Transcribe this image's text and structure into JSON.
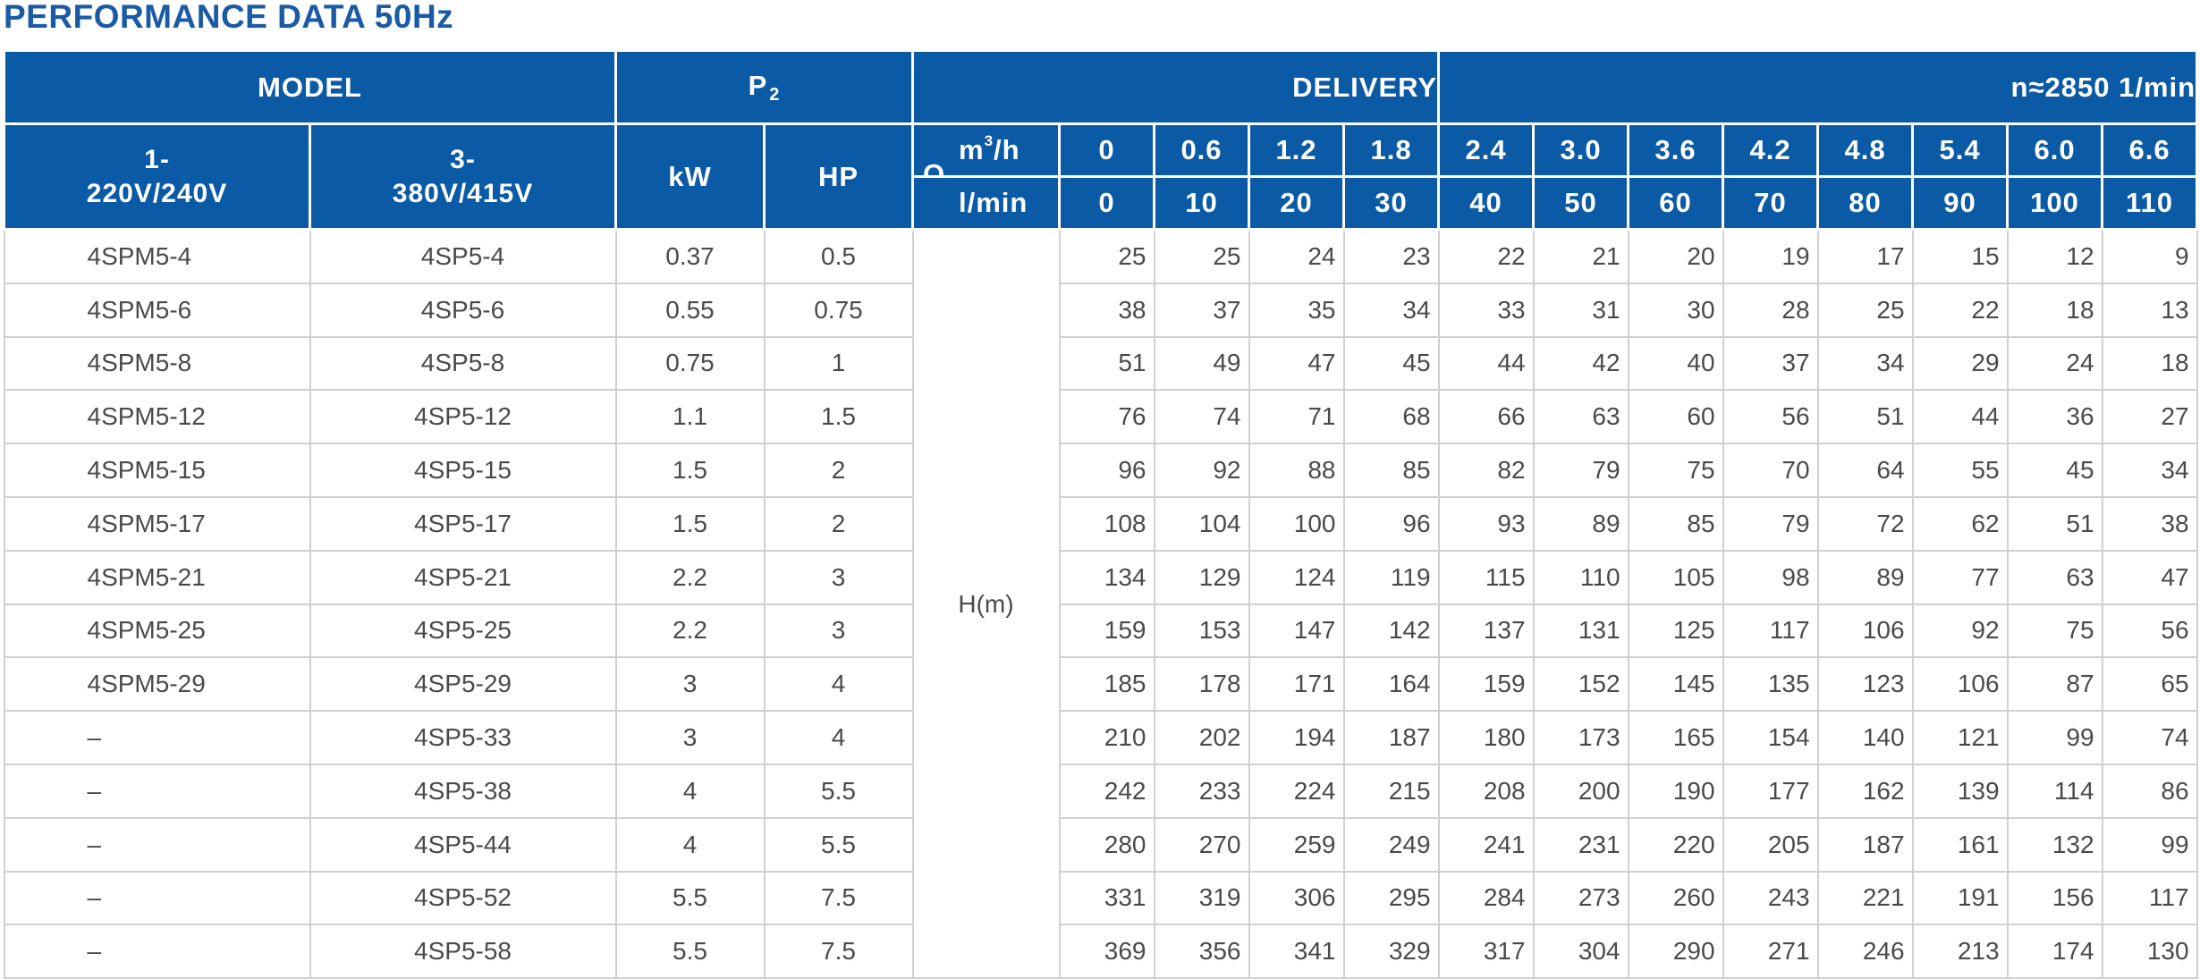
{
  "title": "PERFORMANCE DATA 50Hz",
  "header": {
    "model": "MODEL",
    "p2_main": "P",
    "p2_sub": "2",
    "delivery": "DELIVERY",
    "speed": "n≈2850  1/min",
    "single_phase": "1-\n220V/240V",
    "single_phase_line1": "1-",
    "single_phase_line2": "220V/240V",
    "three_phase_line1": "3-",
    "three_phase_line2": "380V/415V",
    "kw": "kW",
    "hp": "HP",
    "q": "Q",
    "unit_m3h_base": "m",
    "unit_m3h_sup": "3",
    "unit_m3h_tail": "/h",
    "unit_lmin": "l/min",
    "head_label": "H(m)"
  },
  "flow_m3h": [
    "0",
    "0.6",
    "1.2",
    "1.8",
    "2.4",
    "3.0",
    "3.6",
    "4.2",
    "4.8",
    "5.4",
    "6.0",
    "6.6"
  ],
  "flow_lmin": [
    "0",
    "10",
    "20",
    "30",
    "40",
    "50",
    "60",
    "70",
    "80",
    "90",
    "100",
    "110"
  ],
  "rows": [
    {
      "single": "4SPM5-4",
      "three": "4SP5-4",
      "kw": "0.37",
      "hp": "0.5",
      "head": [
        "25",
        "25",
        "24",
        "23",
        "22",
        "21",
        "20",
        "19",
        "17",
        "15",
        "12",
        "9"
      ]
    },
    {
      "single": "4SPM5-6",
      "three": "4SP5-6",
      "kw": "0.55",
      "hp": "0.75",
      "head": [
        "38",
        "37",
        "35",
        "34",
        "33",
        "31",
        "30",
        "28",
        "25",
        "22",
        "18",
        "13"
      ]
    },
    {
      "single": "4SPM5-8",
      "three": "4SP5-8",
      "kw": "0.75",
      "hp": "1",
      "head": [
        "51",
        "49",
        "47",
        "45",
        "44",
        "42",
        "40",
        "37",
        "34",
        "29",
        "24",
        "18"
      ]
    },
    {
      "single": "4SPM5-12",
      "three": "4SP5-12",
      "kw": "1.1",
      "hp": "1.5",
      "head": [
        "76",
        "74",
        "71",
        "68",
        "66",
        "63",
        "60",
        "56",
        "51",
        "44",
        "36",
        "27"
      ]
    },
    {
      "single": "4SPM5-15",
      "three": "4SP5-15",
      "kw": "1.5",
      "hp": "2",
      "head": [
        "96",
        "92",
        "88",
        "85",
        "82",
        "79",
        "75",
        "70",
        "64",
        "55",
        "45",
        "34"
      ]
    },
    {
      "single": "4SPM5-17",
      "three": "4SP5-17",
      "kw": "1.5",
      "hp": "2",
      "head": [
        "108",
        "104",
        "100",
        "96",
        "93",
        "89",
        "85",
        "79",
        "72",
        "62",
        "51",
        "38"
      ]
    },
    {
      "single": "4SPM5-21",
      "three": "4SP5-21",
      "kw": "2.2",
      "hp": "3",
      "head": [
        "134",
        "129",
        "124",
        "119",
        "115",
        "110",
        "105",
        "98",
        "89",
        "77",
        "63",
        "47"
      ]
    },
    {
      "single": "4SPM5-25",
      "three": "4SP5-25",
      "kw": "2.2",
      "hp": "3",
      "head": [
        "159",
        "153",
        "147",
        "142",
        "137",
        "131",
        "125",
        "117",
        "106",
        "92",
        "75",
        "56"
      ]
    },
    {
      "single": "4SPM5-29",
      "three": "4SP5-29",
      "kw": "3",
      "hp": "4",
      "head": [
        "185",
        "178",
        "171",
        "164",
        "159",
        "152",
        "145",
        "135",
        "123",
        "106",
        "87",
        "65"
      ]
    },
    {
      "single": "–",
      "three": "4SP5-33",
      "kw": "3",
      "hp": "4",
      "head": [
        "210",
        "202",
        "194",
        "187",
        "180",
        "173",
        "165",
        "154",
        "140",
        "121",
        "99",
        "74"
      ]
    },
    {
      "single": "–",
      "three": "4SP5-38",
      "kw": "4",
      "hp": "5.5",
      "head": [
        "242",
        "233",
        "224",
        "215",
        "208",
        "200",
        "190",
        "177",
        "162",
        "139",
        "114",
        "86"
      ]
    },
    {
      "single": "–",
      "three": "4SP5-44",
      "kw": "4",
      "hp": "5.5",
      "head": [
        "280",
        "270",
        "259",
        "249",
        "241",
        "231",
        "220",
        "205",
        "187",
        "161",
        "132",
        "99"
      ]
    },
    {
      "single": "–",
      "three": "4SP5-52",
      "kw": "5.5",
      "hp": "7.5",
      "head": [
        "331",
        "319",
        "306",
        "295",
        "284",
        "273",
        "260",
        "243",
        "221",
        "191",
        "156",
        "117"
      ]
    },
    {
      "single": "–",
      "three": "4SP5-58",
      "kw": "5.5",
      "hp": "7.5",
      "head": [
        "369",
        "356",
        "341",
        "329",
        "317",
        "304",
        "290",
        "271",
        "246",
        "213",
        "174",
        "130"
      ]
    }
  ]
}
